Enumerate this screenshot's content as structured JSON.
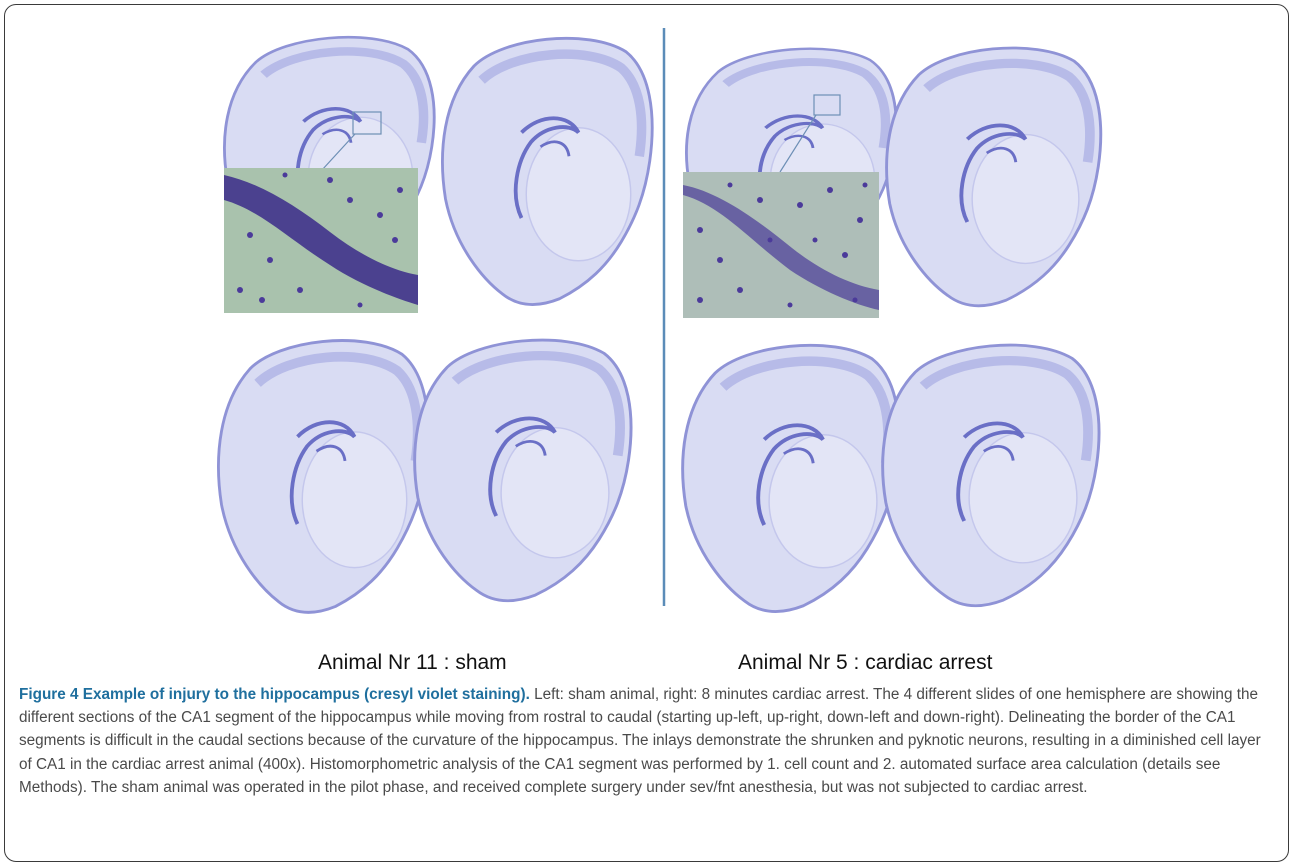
{
  "figure": {
    "left_label": "Animal Nr 11 : sham",
    "right_label": "Animal Nr 5 : cardiac arrest",
    "colors": {
      "stain": "#8f93d6",
      "stain_light": "#d9dcf3",
      "divider": "#5b8cb8",
      "inlay_bg": "#a9c2ad",
      "neuron": "#3b2a8a",
      "caption_title": "#1f6f9e"
    }
  },
  "caption": {
    "title": "Figure 4 Example of injury to the hippocampus (cresyl violet staining).",
    "body": " Left: sham animal, right: 8 minutes cardiac arrest. The 4 different slides of one hemisphere are showing the different sections of the CA1 segment of the hippocampus while moving from rostral to caudal (starting up-left, up-right, down-left and down-right). Delineating the border of the CA1 segments is difficult in the caudal sections because of the curvature of the hippocampus. The inlays demonstrate the shrunken and pyknotic neurons, resulting in a diminished cell layer of CA1 in the cardiac arrest animal (400x). Histomorphometric analysis of the CA1 segment was performed by 1. cell count and 2. automated surface area calculation (details see Methods). The sham animal was operated in the pilot phase, and received complete surgery under sev/fnt anesthesia, but was not subjected to cardiac arrest."
  }
}
